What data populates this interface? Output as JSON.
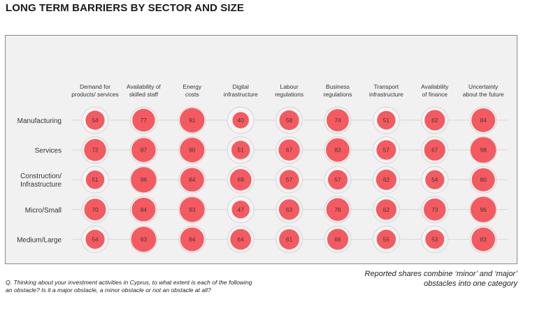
{
  "title": "LONG TERM BARRIERS BY SECTOR AND SIZE",
  "footnote": "Q. Thinking about your investment activities in Cyprus, to what extent is each of the following an obstacle? Is it a major obstacle, a minor obstacle or not an obstacle at all?",
  "note": "Reported shares combine ‘minor’ and ‘major’ obstacles into one category",
  "colors": {
    "bubble": "#f45a5f",
    "outer_ring": "#d9d9d9",
    "panel_bg": "#f1f1f1"
  },
  "chart_data": {
    "type": "bubble-matrix",
    "title": "LONG TERM BARRIERS BY SECTOR AND SIZE",
    "columns": [
      [
        "Demand for",
        "products/ services"
      ],
      [
        "Availability of",
        "skilled staff"
      ],
      [
        "Energy",
        "costs"
      ],
      [
        "Digital",
        "infrastructure"
      ],
      [
        "Labour",
        "regulations"
      ],
      [
        "Business",
        "regulations"
      ],
      [
        "Transport",
        "infrastructure"
      ],
      [
        "Availability",
        "of finance"
      ],
      [
        "Uncertainty",
        "about the future"
      ]
    ],
    "rows": [
      {
        "label": [
          "Manufacturing"
        ],
        "values": [
          54,
          77,
          91,
          40,
          58,
          74,
          51,
          62,
          84
        ]
      },
      {
        "label": [
          "Services"
        ],
        "values": [
          72,
          87,
          90,
          51,
          67,
          83,
          57,
          67,
          98
        ]
      },
      {
        "label": [
          "Construction/",
          "Infrastructure"
        ],
        "values": [
          51,
          96,
          84,
          69,
          57,
          57,
          62,
          54,
          80
        ]
      },
      {
        "label": [
          "Micro/Small"
        ],
        "values": [
          70,
          84,
          93,
          47,
          63,
          78,
          62,
          73,
          96
        ]
      },
      {
        "label": [
          "Medium/Large"
        ],
        "values": [
          54,
          93,
          84,
          64,
          61,
          66,
          55,
          53,
          83
        ]
      }
    ],
    "max_value": 100
  }
}
